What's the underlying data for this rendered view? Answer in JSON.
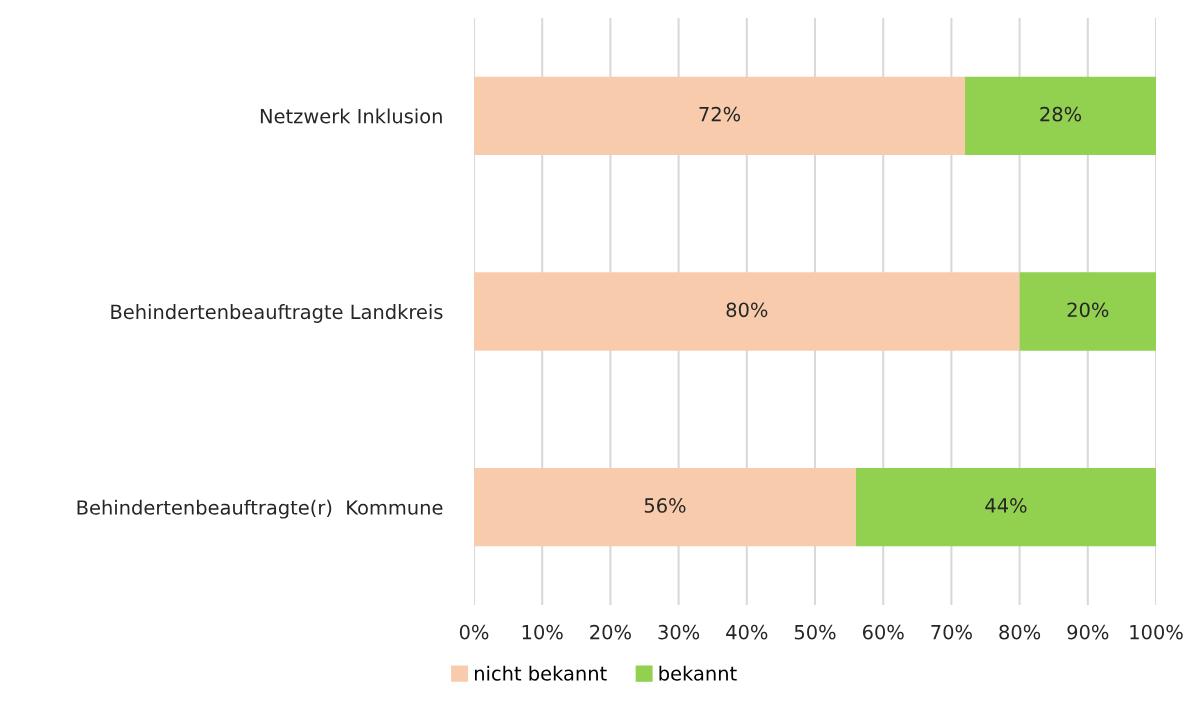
{
  "chart_data": {
    "type": "bar",
    "orientation": "horizontal",
    "stacked": true,
    "categories": [
      "Netzwerk Inklusion",
      "Behindertenbeauftragte Landkreis",
      "Behindertenbeauftragte(r)  Kommune"
    ],
    "series": [
      {
        "name": "nicht bekannt",
        "color": "#f8cbad",
        "values": [
          72,
          80,
          56
        ],
        "value_labels": [
          "72%",
          "80%",
          "56%"
        ]
      },
      {
        "name": "bekannt",
        "color": "#92d050",
        "values": [
          28,
          20,
          44
        ],
        "value_labels": [
          "28%",
          "20%",
          "44%"
        ]
      }
    ],
    "xlim": [
      0,
      100
    ],
    "xticks": [
      {
        "value": 0,
        "label": "0%"
      },
      {
        "value": 10,
        "label": "10%"
      },
      {
        "value": 20,
        "label": "20%"
      },
      {
        "value": 30,
        "label": "30%"
      },
      {
        "value": 40,
        "label": "40%"
      },
      {
        "value": 50,
        "label": "50%"
      },
      {
        "value": 60,
        "label": "60%"
      },
      {
        "value": 70,
        "label": "70%"
      },
      {
        "value": 80,
        "label": "80%"
      },
      {
        "value": 90,
        "label": "90%"
      },
      {
        "value": 100,
        "label": "100%"
      }
    ],
    "grid": "x",
    "legend": "bottom"
  }
}
